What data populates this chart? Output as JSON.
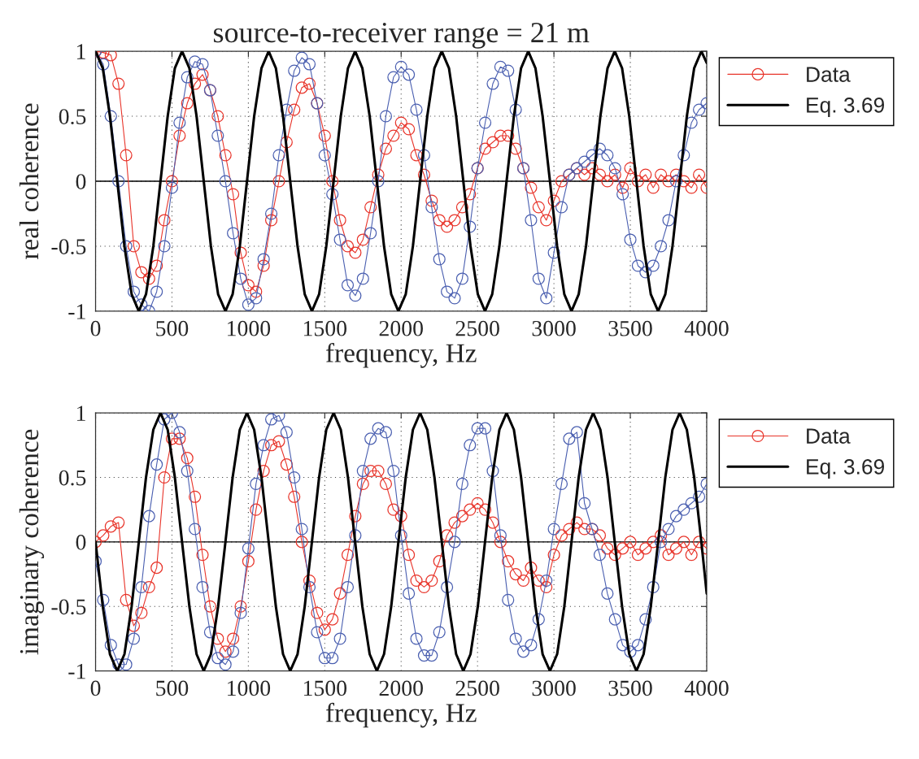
{
  "chart_data": [
    {
      "type": "line",
      "title": "source-to-receiver range = 21 m",
      "xlabel": "frequency, Hz",
      "ylabel": "real coherence",
      "xlim": [
        0,
        4000
      ],
      "xticks": [
        0,
        500,
        1000,
        1500,
        2000,
        2500,
        3000,
        3500,
        4000
      ],
      "ylim": [
        -1,
        1
      ],
      "yticks": [
        -1,
        -0.5,
        0,
        0.5,
        1
      ],
      "grid": true,
      "legend": "right",
      "ref_lines": [
        {
          "axis": "y",
          "value": 0,
          "color": "#000000",
          "line_style": "solid"
        }
      ],
      "x": [
        0,
        50,
        100,
        150,
        200,
        250,
        300,
        350,
        400,
        450,
        500,
        550,
        600,
        650,
        700,
        750,
        800,
        850,
        900,
        950,
        1000,
        1050,
        1100,
        1150,
        1200,
        1250,
        1300,
        1350,
        1400,
        1450,
        1500,
        1550,
        1600,
        1650,
        1700,
        1750,
        1800,
        1850,
        1900,
        1950,
        2000,
        2050,
        2100,
        2150,
        2200,
        2250,
        2300,
        2350,
        2400,
        2450,
        2500,
        2550,
        2600,
        2650,
        2700,
        2750,
        2800,
        2850,
        2900,
        2950,
        3000,
        3050,
        3100,
        3150,
        3200,
        3250,
        3300,
        3350,
        3400,
        3450,
        3500,
        3550,
        3600,
        3650,
        3700,
        3750,
        3800,
        3850,
        3900,
        3950,
        4000
      ],
      "series": [
        {
          "name": "Data",
          "color": "#e8342a",
          "marker": "circle",
          "values": [
            1,
            0.99,
            0.97,
            0.75,
            0.2,
            -0.5,
            -0.7,
            -0.75,
            -0.65,
            -0.3,
            0.0,
            0.35,
            0.6,
            0.75,
            0.82,
            0.7,
            0.5,
            0.2,
            -0.1,
            -0.55,
            -0.8,
            -0.85,
            -0.65,
            -0.3,
            0.0,
            0.3,
            0.55,
            0.72,
            0.75,
            0.6,
            0.35,
            0.0,
            -0.3,
            -0.5,
            -0.55,
            -0.45,
            -0.2,
            0.05,
            0.25,
            0.35,
            0.45,
            0.4,
            0.2,
            0.05,
            -0.15,
            -0.3,
            -0.35,
            -0.3,
            -0.2,
            -0.1,
            0.1,
            0.25,
            0.3,
            0.35,
            0.35,
            0.25,
            0.1,
            -0.05,
            -0.2,
            -0.3,
            -0.15,
            0.0,
            0.05,
            0.1,
            0.05,
            0.1,
            0.05,
            0.0,
            0.05,
            -0.05,
            0.1,
            0.0,
            0.05,
            -0.05,
            0.05,
            0.0,
            0.05,
            0.0,
            -0.05,
            0.05,
            -0.05
          ]
        },
        {
          "color": "#4a5fb0",
          "marker": "circle",
          "values": [
            1,
            0.9,
            0.5,
            0.0,
            -0.5,
            -0.85,
            -0.95,
            -1.0,
            -0.85,
            -0.5,
            -0.05,
            0.45,
            0.8,
            0.92,
            0.9,
            0.7,
            0.35,
            0.0,
            -0.4,
            -0.75,
            -0.95,
            -0.9,
            -0.6,
            -0.25,
            0.2,
            0.55,
            0.85,
            0.95,
            0.9,
            0.6,
            0.2,
            -0.1,
            -0.45,
            -0.8,
            -0.88,
            -0.75,
            -0.4,
            0.0,
            0.5,
            0.8,
            0.88,
            0.82,
            0.55,
            0.2,
            -0.2,
            -0.6,
            -0.85,
            -0.9,
            -0.75,
            -0.35,
            0.1,
            0.45,
            0.75,
            0.88,
            0.85,
            0.55,
            0.1,
            -0.3,
            -0.75,
            -0.9,
            -0.55,
            -0.2,
            0.05,
            0.1,
            0.15,
            0.2,
            0.25,
            0.2,
            0.1,
            -0.1,
            -0.45,
            -0.65,
            -0.7,
            -0.65,
            -0.5,
            -0.3,
            0.0,
            0.2,
            0.45,
            0.55,
            0.6
          ]
        },
        {
          "name": "Eq. 3.69",
          "color": "#000000",
          "marker": "none",
          "x": [
            0,
            47,
            94,
            142,
            189,
            236,
            283,
            330,
            378,
            425,
            472,
            519,
            566,
            614,
            661,
            708,
            755,
            802,
            850,
            897,
            944,
            991,
            1038,
            1086,
            1133,
            1180,
            1227,
            1274,
            1322,
            1369,
            1416,
            1463,
            1510,
            1558,
            1605,
            1652,
            1699,
            1746,
            1794,
            1841,
            1888,
            1935,
            1982,
            2030,
            2077,
            2124,
            2171,
            2218,
            2266,
            2313,
            2360,
            2407,
            2454,
            2502,
            2549,
            2596,
            2643,
            2690,
            2738,
            2785,
            2832,
            2879,
            2926,
            2974,
            3021,
            3068,
            3115,
            3162,
            3210,
            3257,
            3304,
            3351,
            3398,
            3446,
            3493,
            3540,
            3587,
            3634,
            3682,
            3729,
            3776,
            3823,
            3870,
            3918,
            3965,
            4000
          ],
          "values": [
            1,
            0.87,
            0.5,
            0,
            -0.5,
            -0.87,
            -1,
            -0.87,
            -0.5,
            0,
            0.5,
            0.87,
            1,
            0.87,
            0.5,
            0,
            -0.5,
            -0.87,
            -1,
            -0.87,
            -0.5,
            0,
            0.5,
            0.87,
            1,
            0.87,
            0.5,
            0,
            -0.5,
            -0.87,
            -1,
            -0.87,
            -0.5,
            0,
            0.5,
            0.87,
            1,
            0.87,
            0.5,
            0,
            -0.5,
            -0.87,
            -1,
            -0.87,
            -0.5,
            0,
            0.5,
            0.87,
            1,
            0.87,
            0.5,
            0,
            -0.5,
            -0.87,
            -1,
            -0.87,
            -0.5,
            0,
            0.5,
            0.87,
            1,
            0.87,
            0.5,
            0,
            -0.5,
            -0.87,
            -1,
            -0.87,
            -0.5,
            0,
            0.5,
            0.87,
            1,
            0.87,
            0.5,
            0,
            -0.5,
            -0.87,
            -1,
            -0.87,
            -0.5,
            0,
            0.5,
            0.87,
            1,
            0.91
          ]
        }
      ]
    },
    {
      "type": "line",
      "xlabel": "frequency, Hz",
      "ylabel": "imaginary coherence",
      "xlim": [
        0,
        4000
      ],
      "xticks": [
        0,
        500,
        1000,
        1500,
        2000,
        2500,
        3000,
        3500,
        4000
      ],
      "ylim": [
        -1,
        1
      ],
      "yticks": [
        -1,
        -0.5,
        0,
        0.5,
        1
      ],
      "grid": true,
      "legend": "right",
      "ref_lines": [
        {
          "axis": "y",
          "value": 0,
          "color": "#000000",
          "line_style": "solid"
        }
      ],
      "x": [
        0,
        50,
        100,
        150,
        200,
        250,
        300,
        350,
        400,
        450,
        500,
        550,
        600,
        650,
        700,
        750,
        800,
        850,
        900,
        950,
        1000,
        1050,
        1100,
        1150,
        1200,
        1250,
        1300,
        1350,
        1400,
        1450,
        1500,
        1550,
        1600,
        1650,
        1700,
        1750,
        1800,
        1850,
        1900,
        1950,
        2000,
        2050,
        2100,
        2150,
        2200,
        2250,
        2300,
        2350,
        2400,
        2450,
        2500,
        2550,
        2600,
        2650,
        2700,
        2750,
        2800,
        2850,
        2900,
        2950,
        3000,
        3050,
        3100,
        3150,
        3200,
        3250,
        3300,
        3350,
        3400,
        3450,
        3500,
        3550,
        3600,
        3650,
        3700,
        3750,
        3800,
        3850,
        3900,
        3950,
        4000
      ],
      "series": [
        {
          "name": "Data",
          "color": "#e8342a",
          "marker": "circle",
          "values": [
            0.0,
            0.05,
            0.12,
            0.15,
            -0.45,
            -0.65,
            -0.55,
            -0.35,
            -0.2,
            0.5,
            0.8,
            0.8,
            0.65,
            0.35,
            -0.1,
            -0.5,
            -0.75,
            -0.85,
            -0.75,
            -0.5,
            -0.15,
            0.25,
            0.55,
            0.75,
            0.78,
            0.6,
            0.35,
            0.0,
            -0.3,
            -0.55,
            -0.68,
            -0.6,
            -0.4,
            -0.1,
            0.2,
            0.45,
            0.55,
            0.55,
            0.45,
            0.25,
            0.2,
            -0.1,
            -0.3,
            -0.35,
            -0.3,
            -0.15,
            0.05,
            0.15,
            0.2,
            0.25,
            0.3,
            0.25,
            0.15,
            0.0,
            -0.15,
            -0.25,
            -0.3,
            -0.2,
            -0.3,
            -0.35,
            -0.1,
            0.05,
            0.1,
            0.15,
            0.1,
            0.1,
            0.05,
            -0.05,
            -0.1,
            -0.05,
            0.0,
            -0.1,
            -0.05,
            0.0,
            0.05,
            -0.1,
            -0.05,
            0.0,
            -0.1,
            0.0,
            -0.05
          ]
        },
        {
          "color": "#4a5fb0",
          "marker": "circle",
          "values": [
            -0.15,
            -0.45,
            -0.8,
            -0.95,
            -0.95,
            -0.75,
            -0.35,
            0.2,
            0.6,
            0.95,
            1.0,
            0.85,
            0.55,
            0.1,
            -0.35,
            -0.7,
            -0.9,
            -0.95,
            -0.85,
            -0.55,
            -0.05,
            0.45,
            0.75,
            0.95,
            0.98,
            0.85,
            0.5,
            0.1,
            -0.35,
            -0.7,
            -0.9,
            -0.9,
            -0.75,
            -0.35,
            0.05,
            0.55,
            0.8,
            0.88,
            0.85,
            0.55,
            0.05,
            -0.4,
            -0.75,
            -0.88,
            -0.88,
            -0.7,
            -0.35,
            0.0,
            0.45,
            0.75,
            0.88,
            0.88,
            0.55,
            0.05,
            -0.45,
            -0.75,
            -0.85,
            -0.8,
            -0.6,
            -0.3,
            0.1,
            0.45,
            0.8,
            0.85,
            0.3,
            0.1,
            -0.1,
            -0.4,
            -0.6,
            -0.8,
            -0.85,
            -0.8,
            -0.6,
            -0.35,
            0.0,
            0.1,
            0.2,
            0.25,
            0.3,
            0.35,
            0.45
          ]
        },
        {
          "name": "Eq. 3.69",
          "color": "#000000",
          "marker": "none",
          "x": [
            0,
            47,
            94,
            142,
            189,
            236,
            283,
            330,
            378,
            425,
            472,
            519,
            566,
            614,
            661,
            708,
            755,
            802,
            850,
            897,
            944,
            991,
            1038,
            1086,
            1133,
            1180,
            1227,
            1274,
            1322,
            1369,
            1416,
            1463,
            1510,
            1558,
            1605,
            1652,
            1699,
            1746,
            1794,
            1841,
            1888,
            1935,
            1982,
            2030,
            2077,
            2124,
            2171,
            2218,
            2266,
            2313,
            2360,
            2407,
            2454,
            2502,
            2549,
            2596,
            2643,
            2690,
            2738,
            2785,
            2832,
            2879,
            2926,
            2974,
            3021,
            3068,
            3115,
            3162,
            3210,
            3257,
            3304,
            3351,
            3398,
            3446,
            3493,
            3540,
            3587,
            3634,
            3682,
            3729,
            3776,
            3823,
            3870,
            3918,
            3965,
            4000
          ],
          "values": [
            0,
            -0.5,
            -0.87,
            -1,
            -0.87,
            -0.5,
            0,
            0.5,
            0.87,
            1,
            0.87,
            0.5,
            0,
            -0.5,
            -0.87,
            -1,
            -0.87,
            -0.5,
            0,
            0.5,
            0.87,
            1,
            0.87,
            0.5,
            0,
            -0.5,
            -0.87,
            -1,
            -0.87,
            -0.5,
            0,
            0.5,
            0.87,
            1,
            0.87,
            0.5,
            0,
            -0.5,
            -0.87,
            -1,
            -0.87,
            -0.5,
            0,
            0.5,
            0.87,
            1,
            0.87,
            0.5,
            0,
            -0.5,
            -0.87,
            -1,
            -0.87,
            -0.5,
            0,
            0.5,
            0.87,
            1,
            0.87,
            0.5,
            0,
            -0.5,
            -0.87,
            -1,
            -0.87,
            -0.5,
            0,
            0.5,
            0.87,
            1,
            0.87,
            0.5,
            0,
            -0.5,
            -0.87,
            -1,
            -0.87,
            -0.5,
            0,
            0.5,
            0.87,
            1,
            0.87,
            0.5,
            0,
            -0.4
          ]
        }
      ]
    }
  ]
}
